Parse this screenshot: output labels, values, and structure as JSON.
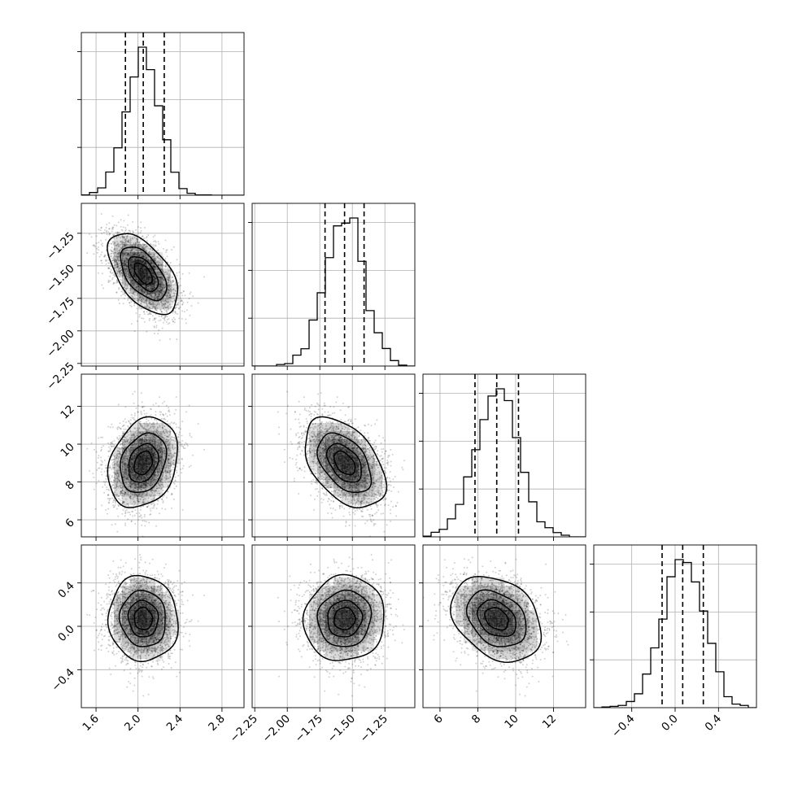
{
  "chart_data": {
    "type": "corner",
    "n_params": 4,
    "params": [
      {
        "mean": 2.05,
        "sd": 0.16,
        "quantiles": [
          1.88,
          2.05,
          2.25
        ]
      },
      {
        "mean": -1.56,
        "sd": 0.15,
        "quantiles": [
          -1.71,
          -1.56,
          -1.41
        ]
      },
      {
        "mean": 9.0,
        "sd": 1.15,
        "quantiles": [
          7.85,
          9.0,
          10.15
        ]
      },
      {
        "mean": 0.07,
        "sd": 0.19,
        "quantiles": [
          -0.12,
          0.07,
          0.26
        ]
      }
    ],
    "ranges": [
      [
        1.46,
        3.01
      ],
      [
        -2.27,
        -1.02
      ],
      [
        5.1,
        13.7
      ],
      [
        -0.75,
        0.75
      ]
    ],
    "ticks": [
      [
        1.6,
        2.0,
        2.4,
        2.8
      ],
      [
        -2.25,
        -2.0,
        -1.75,
        -1.5,
        -1.25
      ],
      [
        6,
        8,
        10,
        12
      ],
      [
        -0.4,
        0.0,
        0.4
      ]
    ],
    "tick_labels": [
      [
        "1.6",
        "2.0",
        "2.4",
        "2.8"
      ],
      [
        "−2.25",
        "−2.00",
        "−1.75",
        "−1.50",
        "−1.25"
      ],
      [
        "6",
        "8",
        "10",
        "12"
      ],
      [
        "−0.4",
        "0.0",
        "0.4"
      ]
    ],
    "correlations": [
      [
        1,
        -0.55,
        0.25,
        -0.05
      ],
      [
        -0.55,
        1,
        -0.45,
        0.05
      ],
      [
        0.25,
        -0.45,
        1,
        -0.3
      ],
      [
        -0.05,
        0.05,
        -0.3,
        1
      ]
    ],
    "contour_levels_sigma": [
      0.5,
      1,
      1.5,
      2
    ],
    "grid": true,
    "legend": "none"
  }
}
